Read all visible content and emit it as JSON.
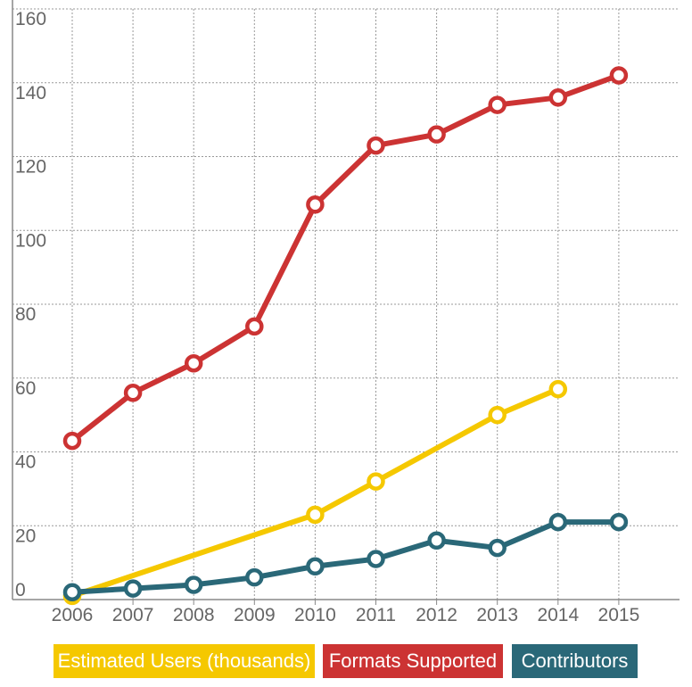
{
  "chart_data": {
    "type": "line",
    "title": "",
    "xlabel": "",
    "ylabel": "",
    "x": [
      "2006",
      "2007",
      "2008",
      "2009",
      "2010",
      "2011",
      "2012",
      "2013",
      "2014",
      "2015"
    ],
    "ylim": [
      0,
      160
    ],
    "yticks": [
      "0",
      "20",
      "40",
      "60",
      "80",
      "100",
      "120",
      "140",
      "160"
    ],
    "grid": true,
    "legend_position": "bottom",
    "series": [
      {
        "name": "Formats Supported",
        "color": "#cc3333",
        "values": [
          43,
          56,
          64,
          74,
          107,
          123,
          126,
          134,
          136,
          142
        ]
      },
      {
        "name": "Estimated Users (thousands)",
        "color": "#f5c800",
        "values": [
          1,
          null,
          null,
          null,
          23,
          32,
          null,
          50,
          57,
          null
        ]
      },
      {
        "name": "Contributors",
        "color": "#2a6878",
        "values": [
          2,
          3,
          4,
          6,
          9,
          11,
          16,
          14,
          21,
          21
        ]
      }
    ],
    "legend": [
      {
        "label": "Estimated Users (thousands)",
        "color": "#f5c800"
      },
      {
        "label": "Formats Supported",
        "color": "#cc3333"
      },
      {
        "label": "Contributors",
        "color": "#2a6878"
      }
    ]
  }
}
